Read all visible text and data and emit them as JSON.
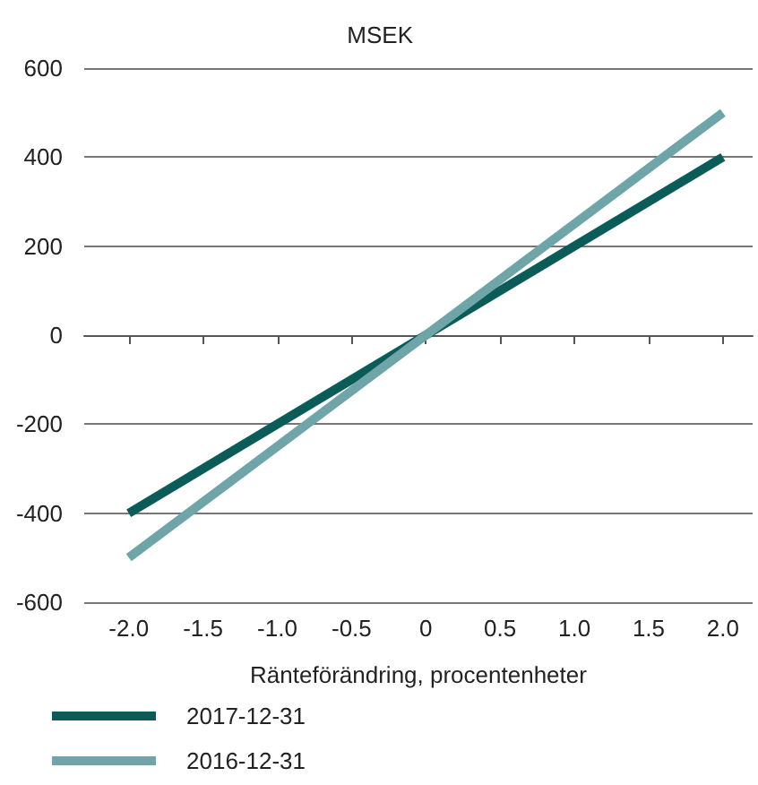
{
  "chart_data": {
    "type": "line",
    "ylabel": "MSEK",
    "xlabel": "Ränteförändring, procentenheter",
    "x": [
      -2,
      2
    ],
    "series": [
      {
        "name": "2017-12-31",
        "color": "#0b5c58",
        "values": [
          -400,
          400
        ]
      },
      {
        "name": "2016-12-31",
        "color": "#6fa5a8",
        "values": [
          -500,
          500
        ]
      }
    ],
    "xlim": [
      -2.3,
      2.2
    ],
    "xticks": [
      {
        "value": -2,
        "label": "-2.0"
      },
      {
        "value": -1.5,
        "label": "-1.5"
      },
      {
        "value": -1,
        "label": "-1.0"
      },
      {
        "value": -0.5,
        "label": "-0.5"
      },
      {
        "value": 0,
        "label": "0"
      },
      {
        "value": 0.5,
        "label": "0.5"
      },
      {
        "value": 1,
        "label": "1.0"
      },
      {
        "value": 1.5,
        "label": "1.5"
      },
      {
        "value": 2,
        "label": "2.0"
      }
    ],
    "ylim": [
      -600,
      600
    ],
    "yticks": [
      -600,
      -400,
      -200,
      0,
      200,
      400,
      600
    ],
    "grid": "y",
    "legend": "bottom left",
    "marker": "none",
    "line_style": "solid"
  }
}
